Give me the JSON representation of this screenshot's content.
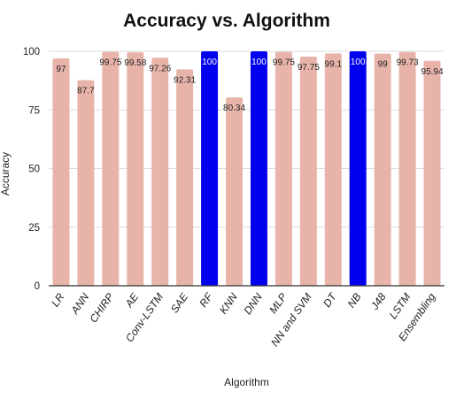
{
  "chart_data": {
    "type": "bar",
    "title": "Accuracy vs. Algorithm",
    "xlabel": "Algorithm",
    "ylabel": "Accuracy",
    "ylim": [
      0,
      100
    ],
    "yticks": [
      0,
      25,
      50,
      75,
      100
    ],
    "grid": true,
    "legend": "none",
    "categories": [
      "LR",
      "ANN",
      "CHIRP",
      "AE",
      "Conv-LSTM",
      "SAE",
      "RF",
      "KNN",
      "DNN",
      "MLP",
      "NN and SVM",
      "DT",
      "NB",
      "J48",
      "LSTM",
      "Ensembling"
    ],
    "values": [
      97,
      87.7,
      99.75,
      99.58,
      97.26,
      92.31,
      100,
      80.34,
      100,
      99.75,
      97.75,
      99.1,
      100,
      99,
      99.73,
      95.94
    ],
    "value_labels": [
      "97",
      "87.7",
      "99.75",
      "99.58",
      "97.26",
      "92.31",
      "100",
      "80.34",
      "100",
      "99.75",
      "97.75",
      "99.1",
      "100",
      "99",
      "99.73",
      "95.94"
    ],
    "colors": {
      "default": "#e8b4aa",
      "highlight": "#0000ee"
    },
    "highlighted": [
      "RF",
      "DNN",
      "NB"
    ]
  }
}
